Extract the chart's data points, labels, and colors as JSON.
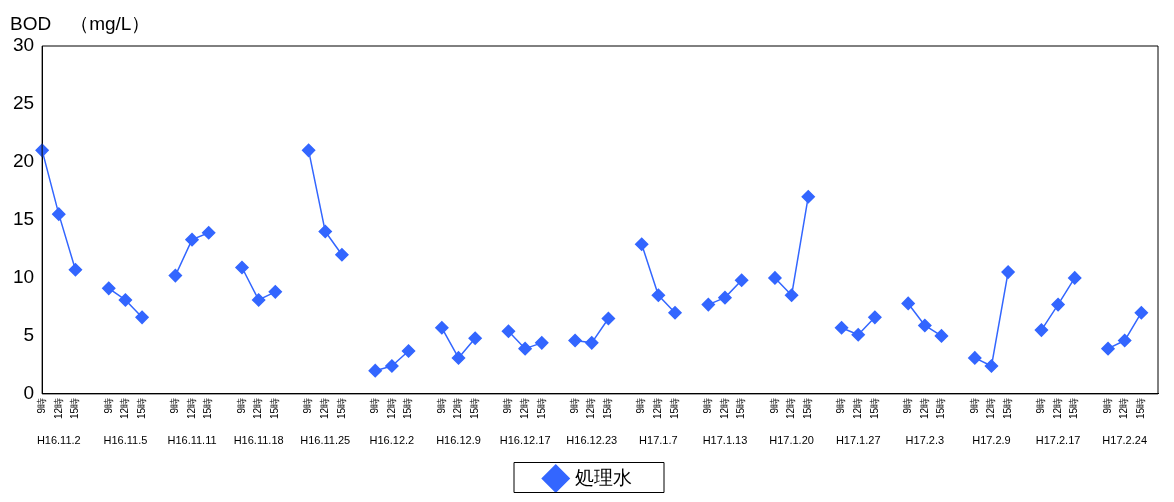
{
  "chart_data": {
    "type": "line",
    "ylabel": "BOD　（mg/L）",
    "categories": [
      "9時",
      "12時",
      "15時",
      null,
      "9時",
      "12時",
      "15時",
      null,
      "9時",
      "12時",
      "15時",
      null,
      "9時",
      "12時",
      "15時",
      null,
      "9時",
      "12時",
      "15時",
      null,
      "9時",
      "12時",
      "15時",
      null,
      "9時",
      "12時",
      "15時",
      null,
      "9時",
      "12時",
      "15時",
      null,
      "9時",
      "12時",
      "15時",
      null,
      "9時",
      "12時",
      "15時",
      null,
      "9時",
      "12時",
      "15時",
      null,
      "9時",
      "12時",
      "15時",
      null,
      "9時",
      "12時",
      "15時",
      null,
      "9時",
      "12時",
      "15時",
      null,
      "9時",
      "12時",
      "15時",
      null,
      "9時",
      "12時",
      "15時",
      null,
      "9時",
      "12時",
      "15時",
      null
    ],
    "annotations": [
      "H16.11.2",
      "H16.11.5",
      "H16.11.11",
      "H16.11.18",
      "H16.11.25",
      "H16.12.2",
      "H16.12.9",
      "H16.12.17",
      "H16.12.23",
      "H17.1.7",
      "H17.1.13",
      "H17.1.20",
      "H17.1.27",
      "H17.2.3",
      "H17.2.9",
      "H17.2.17",
      "H17.2.24"
    ],
    "series": [
      {
        "name": "処理水",
        "color": "#3366ff",
        "values": [
          21,
          15.5,
          10.7,
          null,
          9.1,
          8.1,
          6.6,
          null,
          10.2,
          13.3,
          13.9,
          null,
          10.9,
          8.1,
          8.8,
          null,
          21,
          14,
          12,
          null,
          2,
          2.4,
          3.7,
          null,
          5.7,
          3.1,
          4.8,
          null,
          5.4,
          3.9,
          4.4,
          null,
          4.6,
          4.4,
          6.5,
          null,
          12.9,
          8.5,
          7,
          null,
          7.7,
          8.3,
          9.8,
          null,
          10,
          8.5,
          17,
          null,
          5.7,
          5.1,
          6.6,
          null,
          7.8,
          5.9,
          5,
          null,
          3.1,
          2.4,
          10.5,
          null,
          5.5,
          7.7,
          10,
          null,
          3.9,
          4.6,
          7,
          null
        ]
      }
    ],
    "ylim": [
      0,
      30
    ],
    "yticks": [
      0,
      5,
      10,
      15,
      20,
      25,
      30
    ],
    "grid": false,
    "legend": "bottom",
    "marker": "diamond",
    "line_style": "solid"
  }
}
